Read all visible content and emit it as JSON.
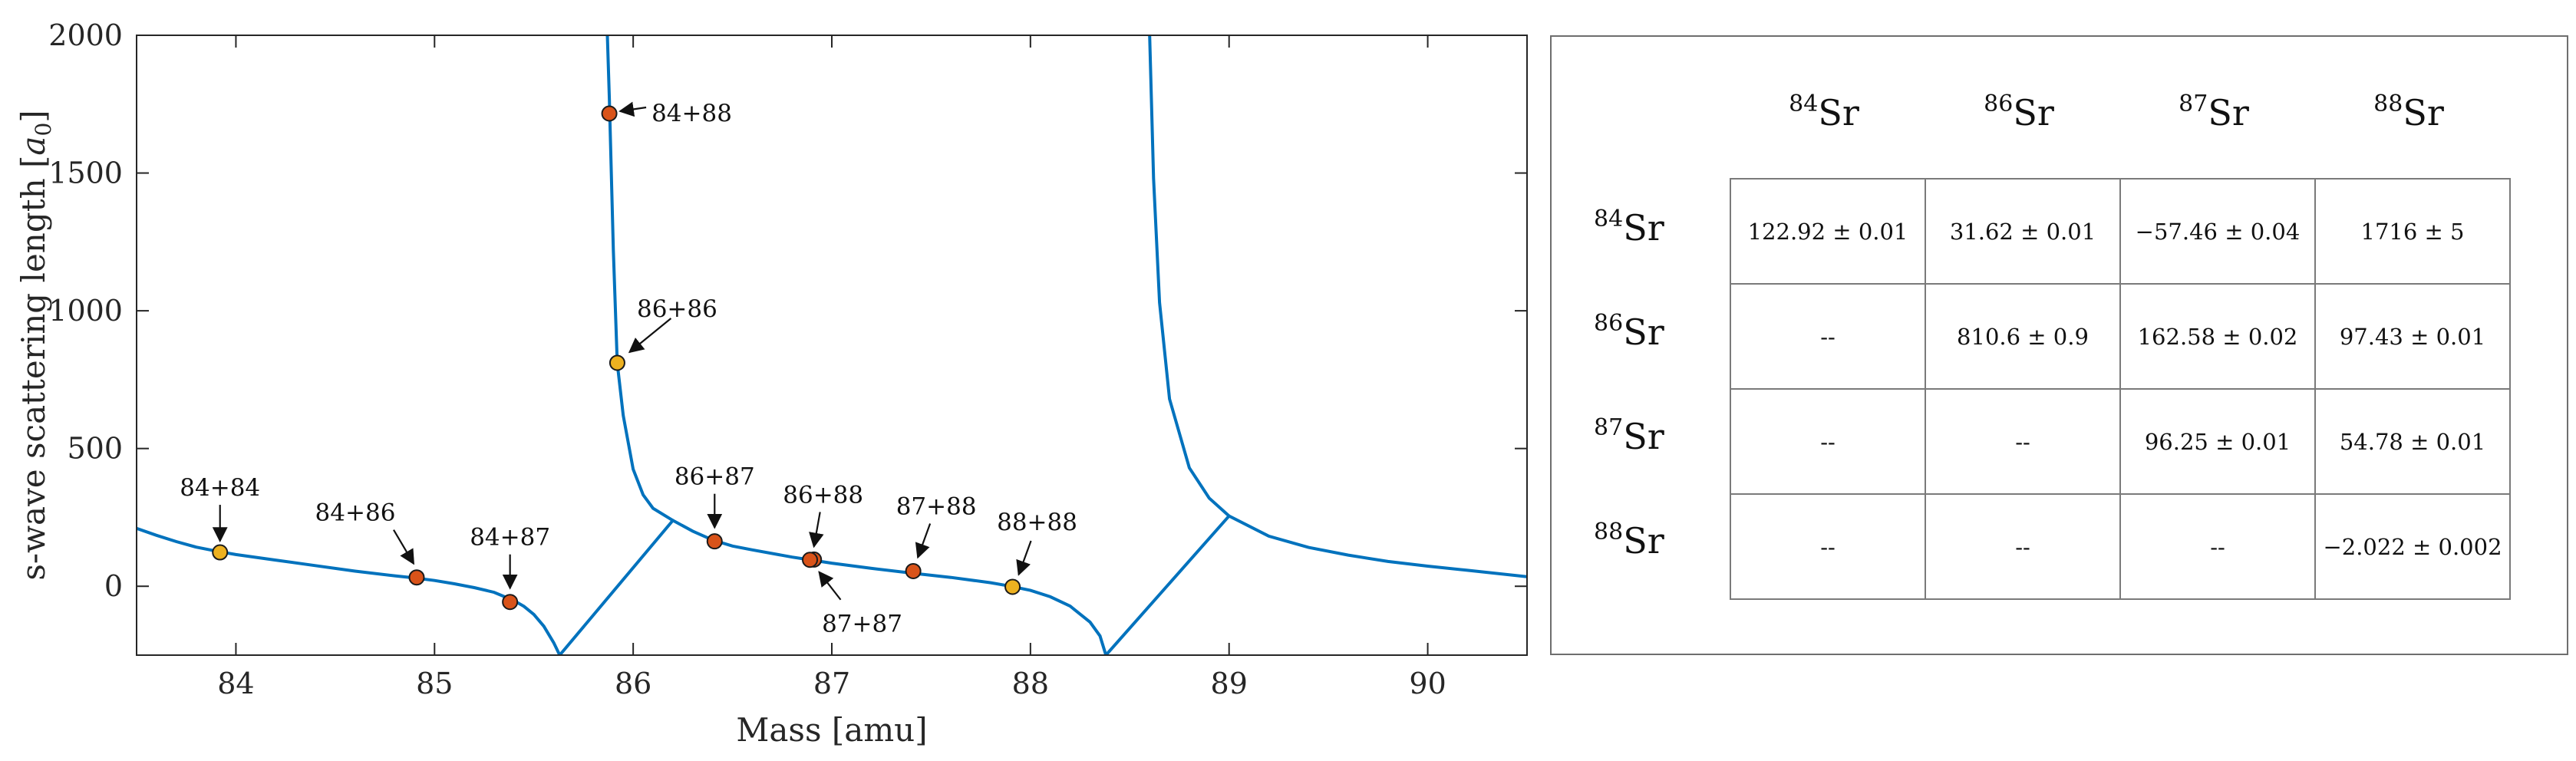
{
  "chart_data": [
    {
      "type": "line",
      "title": "",
      "xlabel": "Mass [amu]",
      "ylabel": "s-wave scattering length [a0]",
      "xlim": [
        83.5,
        90.5
      ],
      "ylim": [
        -250,
        2000
      ],
      "x_ticks": [
        84,
        85,
        86,
        87,
        88,
        89,
        90
      ],
      "y_ticks": [
        0,
        500,
        1000,
        1500,
        2000
      ],
      "grid": false,
      "series": [
        {
          "values_source": "curve",
          "x": [
            83.5,
            83.6,
            83.7,
            83.8,
            83.9,
            84.0,
            84.2,
            84.4,
            84.6,
            84.8,
            84.9,
            85.0,
            85.1,
            85.2,
            85.3,
            85.4,
            85.45,
            85.5,
            85.55,
            85.6,
            85.63,
            86.2,
            86.3,
            86.4,
            86.5,
            86.6,
            86.8,
            86.9,
            87.0,
            87.2,
            87.4,
            87.6,
            87.8,
            87.9,
            88.0,
            88.1,
            88.2,
            88.3,
            88.35,
            88.38,
            89.0,
            89.2,
            89.4,
            89.6,
            89.8,
            90.0,
            90.2,
            90.5
          ],
          "y": [
            210,
            185,
            162,
            142,
            128,
            115,
            95,
            75,
            55,
            38,
            30,
            21,
            9,
            -5,
            -22,
            -52,
            -73,
            -102,
            -145,
            -205,
            -250,
            239,
            200,
            168,
            146,
            132,
            106,
            95,
            84,
            65,
            48,
            32,
            13,
            0,
            -15,
            -38,
            -72,
            -130,
            -180,
            -250,
            255,
            182,
            141,
            113,
            90,
            73,
            58,
            35
          ]
        },
        {
          "values_source": "curve",
          "x": [
            85.87,
            85.88,
            85.9,
            85.92,
            85.95,
            86.0,
            86.05,
            86.1,
            86.2
          ],
          "y": [
            2000,
            1770,
            1220,
            810,
            620,
            425,
            332,
            283,
            239
          ]
        },
        {
          "values_source": "curve",
          "x": [
            88.6,
            88.62,
            88.65,
            88.7,
            88.8,
            88.9,
            89.0
          ],
          "y": [
            2000,
            1480,
            1030,
            680,
            430,
            320,
            255
          ]
        }
      ],
      "points": [
        {
          "label": "84+84",
          "x": 83.92,
          "y": 123,
          "color": "#EDB120"
        },
        {
          "label": "84+86",
          "x": 84.91,
          "y": 32,
          "color": "#D95319"
        },
        {
          "label": "84+87",
          "x": 85.38,
          "y": -57,
          "color": "#D95319"
        },
        {
          "label": "84+88",
          "x": 85.88,
          "y": 1716,
          "color": "#D95319"
        },
        {
          "label": "86+86",
          "x": 85.92,
          "y": 811,
          "color": "#EDB120"
        },
        {
          "label": "86+87",
          "x": 86.41,
          "y": 163,
          "color": "#D95319"
        },
        {
          "label": "86+88",
          "x": 86.91,
          "y": 97,
          "color": "#D95319"
        },
        {
          "label": "87+87",
          "x": 86.89,
          "y": 96,
          "color": "#D95319"
        },
        {
          "label": "87+88",
          "x": 87.41,
          "y": 55,
          "color": "#D95319"
        },
        {
          "label": "88+88",
          "x": 87.91,
          "y": -2,
          "color": "#EDB120"
        }
      ]
    },
    {
      "type": "table",
      "columns": [
        "84Sr",
        "86Sr",
        "87Sr",
        "88Sr"
      ],
      "rows": [
        {
          "label": "84Sr",
          "cells": [
            "122.92 ± 0.01",
            "31.62 ± 0.01",
            "−57.46 ± 0.04",
            "1716 ± 5"
          ]
        },
        {
          "label": "86Sr",
          "cells": [
            "--",
            "810.6 ± 0.9",
            "162.58 ± 0.02",
            "97.43 ± 0.01"
          ]
        },
        {
          "label": "87Sr",
          "cells": [
            "--",
            "--",
            "96.25 ± 0.01",
            "54.78 ± 0.01"
          ]
        },
        {
          "label": "88Sr",
          "cells": [
            "--",
            "--",
            "--",
            "−2.022 ± 0.002"
          ]
        }
      ]
    }
  ],
  "table": {
    "col_mass": [
      "84",
      "86",
      "87",
      "88"
    ],
    "col_elem": [
      "Sr",
      "Sr",
      "Sr",
      "Sr"
    ],
    "row_mass": [
      "84",
      "86",
      "87",
      "88"
    ],
    "row_elem": [
      "Sr",
      "Sr",
      "Sr",
      "Sr"
    ]
  },
  "colors": {
    "curve": "#0072BD",
    "same_isotope_marker": "#EDB120",
    "mixed_isotope_marker": "#D95319",
    "axis": "#262626"
  }
}
